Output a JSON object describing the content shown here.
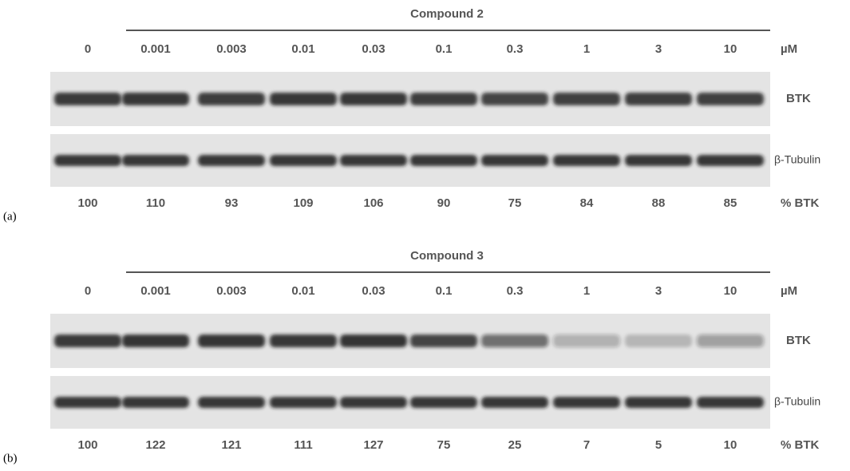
{
  "panels": [
    {
      "label": "(a)",
      "title": "Compound 2",
      "concentrations": [
        "0",
        "0.001",
        "0.003",
        "0.01",
        "0.03",
        "0.1",
        "0.3",
        "1",
        "3",
        "10"
      ],
      "unit": "µM",
      "blots": [
        "BTK",
        "β-Tubulin"
      ],
      "percent_btk": [
        100,
        110,
        93,
        109,
        106,
        90,
        75,
        84,
        88,
        85
      ],
      "percent_label": "% BTK"
    },
    {
      "label": "(b)",
      "title": "Compound 3",
      "concentrations": [
        "0",
        "0.001",
        "0.003",
        "0.01",
        "0.03",
        "0.1",
        "0.3",
        "1",
        "3",
        "10"
      ],
      "unit": "µM",
      "blots": [
        "BTK",
        "β-Tubulin"
      ],
      "percent_btk": [
        100,
        122,
        121,
        111,
        127,
        75,
        25,
        7,
        5,
        10
      ],
      "percent_label": "% BTK"
    }
  ]
}
